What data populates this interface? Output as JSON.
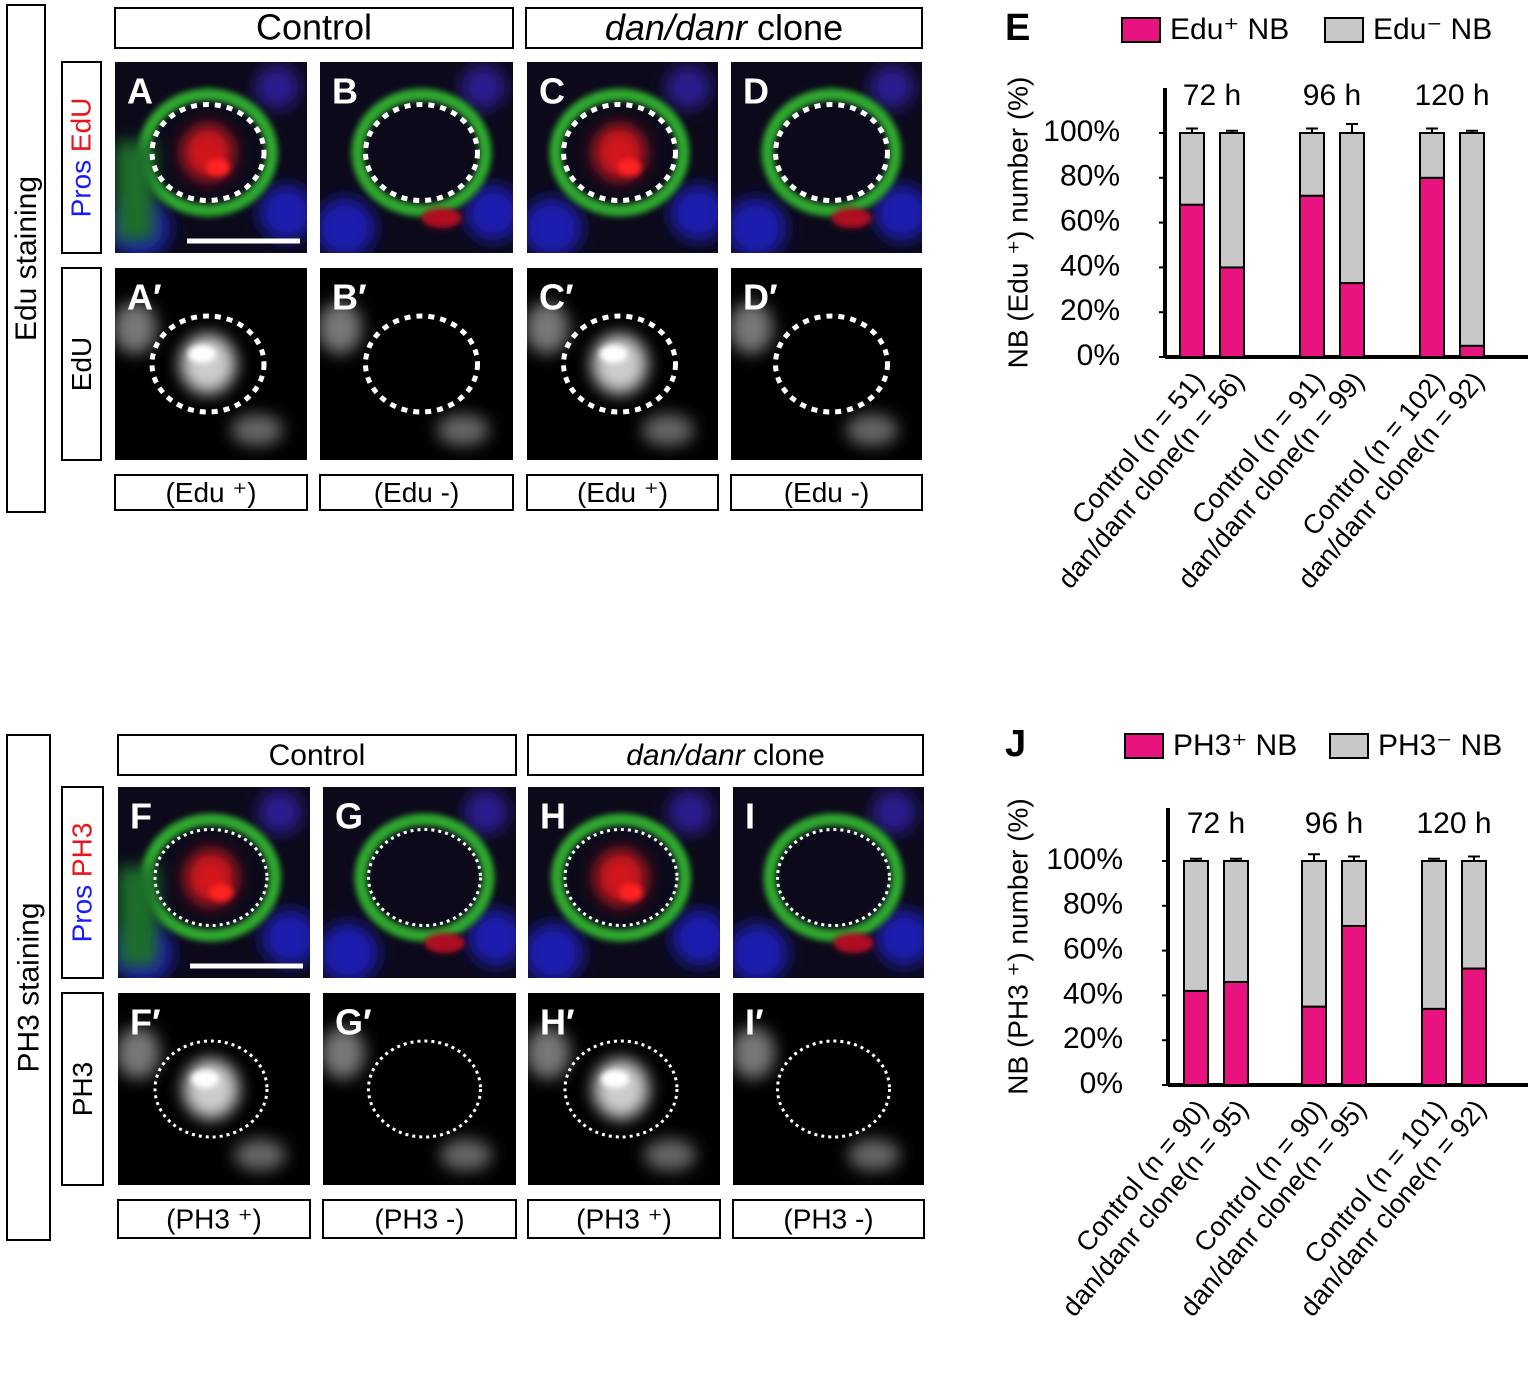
{
  "figure": {
    "sections": [
      {
        "row_title": "Edu staining",
        "control_header": "Control",
        "clone_header": {
          "italic": "dan/danr",
          "text": "clone"
        },
        "stain_labels": [
          "Pros",
          "EdU"
        ],
        "stain_colors": [
          "#1a1aff",
          "#e8141c"
        ],
        "gray_label": "EdU",
        "letters": [
          "A",
          "B",
          "C",
          "D"
        ],
        "letters2": [
          "A′",
          "B′",
          "C′",
          "D′"
        ],
        "captions": [
          "(Edu ⁺)",
          "(Edu -)",
          "(Edu ⁺)",
          "(Edu -)"
        ]
      },
      {
        "row_title": "PH3 staining",
        "control_header": "Control",
        "clone_header": {
          "italic": "dan/danr",
          "text": "clone"
        },
        "stain_labels": [
          "Pros",
          "PH3"
        ],
        "stain_colors": [
          "#1a1aff",
          "#e8141c"
        ],
        "gray_label": "PH3",
        "letters": [
          "F",
          "G",
          "H",
          "I"
        ],
        "letters2": [
          "F′",
          "G′",
          "H′",
          "I′"
        ],
        "captions": [
          "(PH3 ⁺)",
          "(PH3 -)",
          "(PH3 ⁺)",
          "(PH3 -)"
        ]
      }
    ]
  },
  "chart_data": [
    {
      "type": "stacked_bar",
      "panel_label": "E",
      "y_label": "NB (Edu ⁺) number (%)",
      "categories": [
        "Control (n = 51)",
        "dan/danr clone(n = 56)",
        "Control (n = 91)",
        "dan/danr clone(n = 99)",
        "Control (n = 102)",
        "dan/danr clone(n = 92)"
      ],
      "groups": [
        "72 h",
        "96 h",
        "120 h"
      ],
      "series": [
        {
          "name": "Edu⁺ NB",
          "color": "#e8137f",
          "values": [
            68,
            40,
            72,
            33,
            80,
            5
          ],
          "errors": [
            2,
            1,
            2,
            4,
            2,
            1
          ]
        },
        {
          "name": "Edu⁻ NB",
          "color": "#c8c8c8",
          "values": [
            32,
            60,
            28,
            67,
            20,
            95
          ],
          "errors": [
            2,
            1,
            2,
            4,
            2,
            1
          ]
        }
      ],
      "ylim": [
        0,
        100
      ],
      "yticks": [
        {
          "value": 0,
          "label": "0%"
        },
        {
          "value": 20,
          "label": "20%"
        },
        {
          "value": 40,
          "label": "40%"
        },
        {
          "value": 60,
          "label": "60%"
        },
        {
          "value": 80,
          "label": "80%"
        },
        {
          "value": 100,
          "label": "100%"
        }
      ]
    },
    {
      "type": "stacked_bar",
      "panel_label": "J",
      "y_label": "NB (PH3 ⁺) number (%)",
      "categories": [
        "Control (n = 90)",
        "dan/danr clone(n = 95)",
        "Control (n = 90)",
        "dan/danr clone(n = 95)",
        "Control (n = 101)",
        "dan/danr clone(n = 92)"
      ],
      "groups": [
        "72 h",
        "96 h",
        "120 h"
      ],
      "series": [
        {
          "name": "PH3⁺ NB",
          "color": "#e8137f",
          "values": [
            42,
            46,
            35,
            71,
            34,
            52
          ],
          "errors": [
            1,
            1,
            4,
            3,
            1,
            2
          ]
        },
        {
          "name": "PH3⁻ NB",
          "color": "#c8c8c8",
          "values": [
            58,
            54,
            65,
            29,
            66,
            48
          ],
          "errors": [
            1,
            1,
            3,
            2,
            1,
            2
          ]
        }
      ],
      "ylim": [
        0,
        100
      ],
      "yticks": [
        {
          "value": 0,
          "label": "0%"
        },
        {
          "value": 20,
          "label": "20%"
        },
        {
          "value": 40,
          "label": "40%"
        },
        {
          "value": 60,
          "label": "60%"
        },
        {
          "value": 80,
          "label": "80%"
        },
        {
          "value": 100,
          "label": "100%"
        }
      ]
    }
  ]
}
